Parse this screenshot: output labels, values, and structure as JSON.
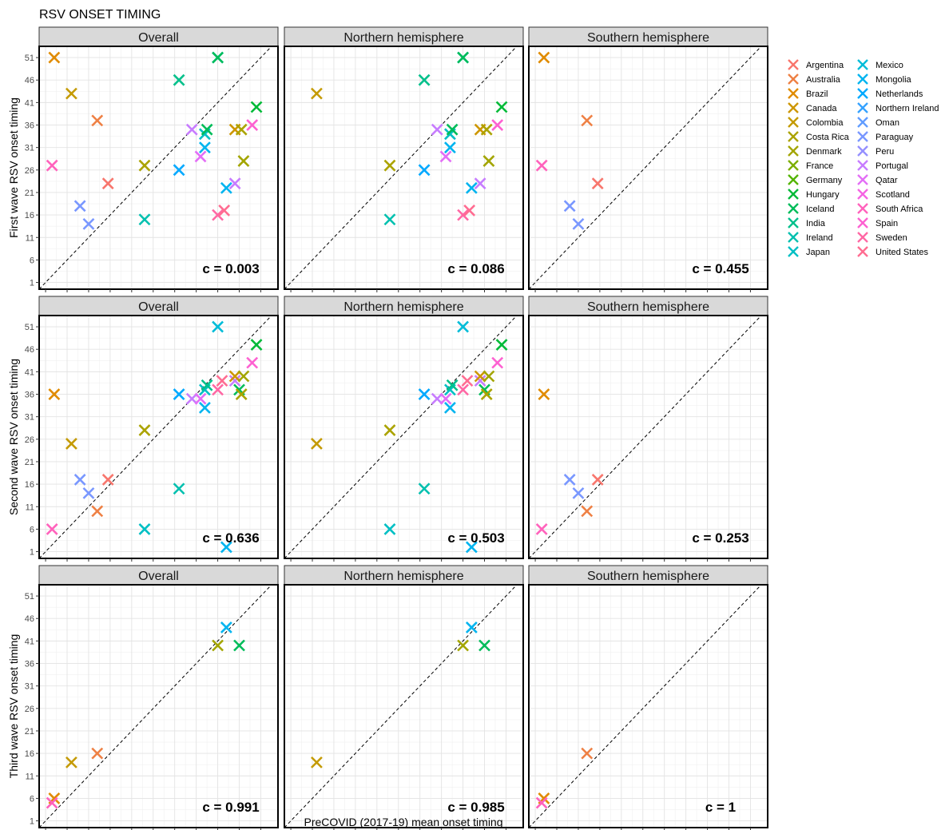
{
  "figure_title": "RSV ONSET TIMING",
  "xlabel": "PreCOVID (2017-19) mean onset timing",
  "tick_labels": [
    "1",
    "6",
    "11",
    "16",
    "21",
    "26",
    "31",
    "36",
    "41",
    "46",
    "51"
  ],
  "legend": {
    "entries": [
      {
        "name": "Argentina",
        "color": "#F8766D"
      },
      {
        "name": "Australia",
        "color": "#EE8044"
      },
      {
        "name": "Brazil",
        "color": "#E08B00"
      },
      {
        "name": "Canada",
        "color": "#CD9600"
      },
      {
        "name": "Colombia",
        "color": "#C49A00"
      },
      {
        "name": "Costa Rica",
        "color": "#ABA300"
      },
      {
        "name": "Denmark",
        "color": "#A3A500"
      },
      {
        "name": "France",
        "color": "#7CAE00"
      },
      {
        "name": "Germany",
        "color": "#53B400"
      },
      {
        "name": "Hungary",
        "color": "#00BA38"
      },
      {
        "name": "Iceland",
        "color": "#00BC59"
      },
      {
        "name": "India",
        "color": "#00C08B"
      },
      {
        "name": "Ireland",
        "color": "#00C0AF"
      },
      {
        "name": "Japan",
        "color": "#00BFC4"
      },
      {
        "name": "Mexico",
        "color": "#00BCD8"
      },
      {
        "name": "Mongolia",
        "color": "#00B4EF"
      },
      {
        "name": "Netherlands",
        "color": "#00A9FF"
      },
      {
        "name": "Northern Ireland",
        "color": "#35A2FF"
      },
      {
        "name": "Oman",
        "color": "#619CFF"
      },
      {
        "name": "Paraguay",
        "color": "#7997FF"
      },
      {
        "name": "Peru",
        "color": "#9590FF"
      },
      {
        "name": "Portugal",
        "color": "#C77CFF"
      },
      {
        "name": "Qatar",
        "color": "#E36EF6"
      },
      {
        "name": "Scotland",
        "color": "#F564E3"
      },
      {
        "name": "South Africa",
        "color": "#FF62BC"
      },
      {
        "name": "Spain",
        "color": "#FD61D1"
      },
      {
        "name": "Sweden",
        "color": "#FF67A4"
      },
      {
        "name": "United States",
        "color": "#FF6C91"
      }
    ]
  },
  "chart_data": [
    {
      "type": "scatter",
      "row_label": "First wave RSV onset timing",
      "panel": "Overall",
      "stat": "c = 0.003",
      "xlim": [
        -0.5,
        55
      ],
      "ylim": [
        -0.5,
        53.5
      ],
      "diagonal": true,
      "points": [
        [
          3,
          51,
          "Brazil"
        ],
        [
          7,
          43,
          "Colombia"
        ],
        [
          13,
          37,
          "Australia"
        ],
        [
          2.5,
          27,
          "South Africa"
        ],
        [
          15.5,
          23,
          "Argentina"
        ],
        [
          9,
          18,
          "Paraguay"
        ],
        [
          11,
          14,
          "Paraguay"
        ],
        [
          24,
          27,
          "Costa Rica"
        ],
        [
          24,
          15,
          "Ireland"
        ],
        [
          32,
          46,
          "India"
        ],
        [
          32,
          26,
          "Netherlands"
        ],
        [
          35,
          35,
          "Portugal"
        ],
        [
          37,
          29,
          "Qatar"
        ],
        [
          38,
          31,
          "Mongolia"
        ],
        [
          38,
          34,
          "Japan"
        ],
        [
          38.5,
          35,
          "Iceland"
        ],
        [
          41,
          51,
          "Mexico"
        ],
        [
          41,
          51,
          "Iceland"
        ],
        [
          41,
          16,
          "Sweden"
        ],
        [
          42.5,
          17,
          "United States"
        ],
        [
          43,
          22,
          "Mongolia"
        ],
        [
          45,
          23,
          "Portugal"
        ],
        [
          45,
          35,
          "Canada"
        ],
        [
          46.5,
          35,
          "Costa Rica"
        ],
        [
          47,
          28,
          "Denmark"
        ],
        [
          49,
          36,
          "Spain"
        ],
        [
          50,
          40,
          "Hungary"
        ]
      ]
    },
    {
      "type": "scatter",
      "row_label": "First wave RSV onset timing",
      "panel": "Northern hemisphere",
      "stat": "c = 0.086",
      "xlim": [
        -0.5,
        55
      ],
      "ylim": [
        -0.5,
        53.5
      ],
      "diagonal": true,
      "points": [
        [
          7,
          43,
          "Colombia"
        ],
        [
          24,
          27,
          "Costa Rica"
        ],
        [
          24,
          15,
          "Ireland"
        ],
        [
          32,
          46,
          "India"
        ],
        [
          32,
          26,
          "Netherlands"
        ],
        [
          35,
          35,
          "Portugal"
        ],
        [
          37,
          29,
          "Qatar"
        ],
        [
          38,
          31,
          "Mongolia"
        ],
        [
          38,
          34,
          "Japan"
        ],
        [
          38.5,
          35,
          "Iceland"
        ],
        [
          41,
          51,
          "Mexico"
        ],
        [
          41,
          51,
          "Iceland"
        ],
        [
          41,
          16,
          "Sweden"
        ],
        [
          42.5,
          17,
          "United States"
        ],
        [
          43,
          22,
          "Mongolia"
        ],
        [
          45,
          23,
          "Portugal"
        ],
        [
          45,
          35,
          "Canada"
        ],
        [
          46.5,
          35,
          "Costa Rica"
        ],
        [
          47,
          28,
          "Denmark"
        ],
        [
          49,
          36,
          "Spain"
        ],
        [
          50,
          40,
          "Hungary"
        ]
      ]
    },
    {
      "type": "scatter",
      "row_label": "First wave RSV onset timing",
      "panel": "Southern hemisphere",
      "stat": "c = 0.455",
      "xlim": [
        -0.5,
        55
      ],
      "ylim": [
        -0.5,
        53.5
      ],
      "diagonal": true,
      "points": [
        [
          3,
          51,
          "Brazil"
        ],
        [
          13,
          37,
          "Australia"
        ],
        [
          2.5,
          27,
          "South Africa"
        ],
        [
          15.5,
          23,
          "Argentina"
        ],
        [
          9,
          18,
          "Paraguay"
        ],
        [
          11,
          14,
          "Paraguay"
        ]
      ]
    },
    {
      "type": "scatter",
      "row_label": "Second wave RSV onset timing",
      "panel": "Overall",
      "stat": "c = 0.636",
      "xlim": [
        -0.5,
        55
      ],
      "ylim": [
        -0.5,
        53.5
      ],
      "diagonal": true,
      "points": [
        [
          3,
          36,
          "Brazil"
        ],
        [
          7,
          25,
          "Colombia"
        ],
        [
          9,
          17,
          "Paraguay"
        ],
        [
          11,
          14,
          "Paraguay"
        ],
        [
          15.5,
          17,
          "Argentina"
        ],
        [
          13,
          10,
          "Australia"
        ],
        [
          2.5,
          6,
          "South Africa"
        ],
        [
          24,
          6,
          "Japan"
        ],
        [
          24,
          28,
          "Costa Rica"
        ],
        [
          32,
          15,
          "Ireland"
        ],
        [
          32,
          36,
          "Netherlands"
        ],
        [
          35,
          35,
          "Portugal"
        ],
        [
          37,
          35,
          "Qatar"
        ],
        [
          38,
          33,
          "Mongolia"
        ],
        [
          38,
          37,
          "Japan"
        ],
        [
          38.5,
          38,
          "India"
        ],
        [
          41,
          51,
          "Mexico"
        ],
        [
          41,
          37,
          "Sweden"
        ],
        [
          42,
          39,
          "United States"
        ],
        [
          43,
          2,
          "Mongolia"
        ],
        [
          45,
          39,
          "Portugal"
        ],
        [
          45,
          40,
          "Canada"
        ],
        [
          46,
          37,
          "Iceland"
        ],
        [
          46.5,
          36,
          "Costa Rica"
        ],
        [
          47,
          40,
          "Denmark"
        ],
        [
          49,
          43,
          "Spain"
        ],
        [
          50,
          47,
          "Hungary"
        ]
      ]
    },
    {
      "type": "scatter",
      "row_label": "Second wave RSV onset timing",
      "panel": "Northern hemisphere",
      "stat": "c = 0.503",
      "xlim": [
        -0.5,
        55
      ],
      "ylim": [
        -0.5,
        53.5
      ],
      "diagonal": true,
      "points": [
        [
          7,
          25,
          "Colombia"
        ],
        [
          24,
          6,
          "Japan"
        ],
        [
          24,
          28,
          "Costa Rica"
        ],
        [
          32,
          15,
          "Ireland"
        ],
        [
          32,
          36,
          "Netherlands"
        ],
        [
          35,
          35,
          "Portugal"
        ],
        [
          37,
          35,
          "Qatar"
        ],
        [
          38,
          33,
          "Mongolia"
        ],
        [
          38,
          37,
          "Japan"
        ],
        [
          38.5,
          38,
          "India"
        ],
        [
          41,
          51,
          "Mexico"
        ],
        [
          41,
          37,
          "Sweden"
        ],
        [
          42,
          39,
          "United States"
        ],
        [
          43,
          2,
          "Mongolia"
        ],
        [
          45,
          39,
          "Portugal"
        ],
        [
          45,
          40,
          "Canada"
        ],
        [
          46,
          37,
          "Iceland"
        ],
        [
          46.5,
          36,
          "Costa Rica"
        ],
        [
          47,
          40,
          "Denmark"
        ],
        [
          49,
          43,
          "Spain"
        ],
        [
          50,
          47,
          "Hungary"
        ]
      ]
    },
    {
      "type": "scatter",
      "row_label": "Second wave RSV onset timing",
      "panel": "Southern hemisphere",
      "stat": "c = 0.253",
      "xlim": [
        -0.5,
        55
      ],
      "ylim": [
        -0.5,
        53.5
      ],
      "diagonal": true,
      "points": [
        [
          3,
          36,
          "Brazil"
        ],
        [
          9,
          17,
          "Paraguay"
        ],
        [
          11,
          14,
          "Paraguay"
        ],
        [
          15.5,
          17,
          "Argentina"
        ],
        [
          13,
          10,
          "Australia"
        ],
        [
          2.5,
          6,
          "South Africa"
        ]
      ]
    },
    {
      "type": "scatter",
      "row_label": "Third wave RSV onset timing",
      "panel": "Overall",
      "stat": "c = 0.991",
      "xlim": [
        -0.5,
        55
      ],
      "ylim": [
        -0.5,
        53.5
      ],
      "diagonal": true,
      "points": [
        [
          3,
          6,
          "Brazil"
        ],
        [
          2.5,
          5,
          "South Africa"
        ],
        [
          7,
          14,
          "Colombia"
        ],
        [
          13,
          16,
          "Australia"
        ],
        [
          41,
          40,
          "Denmark"
        ],
        [
          43,
          44,
          "Mongolia"
        ],
        [
          46,
          40,
          "Iceland"
        ]
      ]
    },
    {
      "type": "scatter",
      "row_label": "Third wave RSV onset timing",
      "panel": "Northern hemisphere",
      "stat": "c = 0.985",
      "xlim": [
        -0.5,
        55
      ],
      "ylim": [
        -0.5,
        53.5
      ],
      "diagonal": true,
      "points": [
        [
          7,
          14,
          "Colombia"
        ],
        [
          41,
          40,
          "Denmark"
        ],
        [
          43,
          44,
          "Mongolia"
        ],
        [
          46,
          40,
          "Iceland"
        ]
      ]
    },
    {
      "type": "scatter",
      "row_label": "Third wave RSV onset timing",
      "panel": "Southern hemisphere",
      "stat": "c = 1",
      "xlim": [
        -0.5,
        55
      ],
      "ylim": [
        -0.5,
        53.5
      ],
      "diagonal": true,
      "points": [
        [
          3,
          6,
          "Brazil"
        ],
        [
          2.5,
          5,
          "South Africa"
        ],
        [
          13,
          16,
          "Australia"
        ]
      ]
    }
  ]
}
